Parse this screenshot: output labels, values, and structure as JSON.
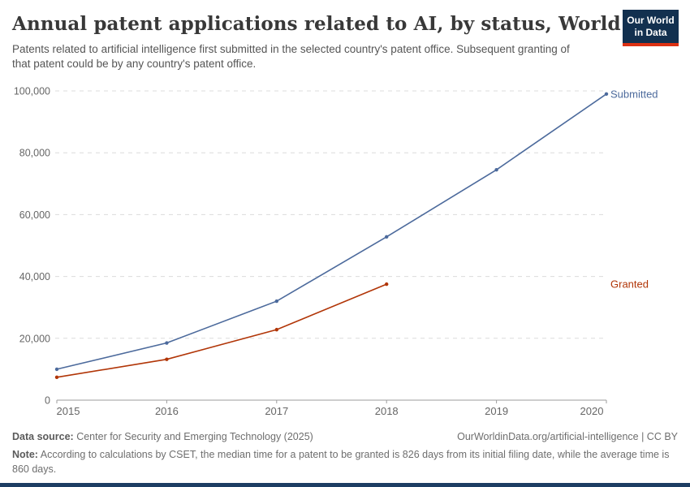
{
  "header": {
    "title": "Annual patent applications related to AI, by status, World",
    "subtitle": "Patents related to artificial intelligence first submitted in the selected country's patent office. Subsequent granting of that patent could be by any country's patent office."
  },
  "logo": {
    "line1": "Our World",
    "line2": "in Data",
    "bg_color": "#12304f",
    "accent_color": "#dc3012"
  },
  "chart_data": {
    "type": "line",
    "title": "Annual patent applications related to AI, by status, World",
    "xlabel": "",
    "ylabel": "",
    "ylim": [
      0,
      100000
    ],
    "yticks": [
      0,
      20000,
      40000,
      60000,
      80000,
      100000
    ],
    "ytick_labels": [
      "0",
      "20,000",
      "40,000",
      "60,000",
      "80,000",
      "100,000"
    ],
    "xticks": [
      2015,
      2016,
      2017,
      2018,
      2019,
      2020
    ],
    "xtick_labels": [
      "2015",
      "2016",
      "2017",
      "2018",
      "2019",
      "2020"
    ],
    "grid": "horizontal-dashed",
    "legend_position": "right-of-line-end",
    "series": [
      {
        "name": "Submitted",
        "color": "#4c6a9c",
        "x": [
          2015,
          2016,
          2017,
          2018,
          2019,
          2020
        ],
        "values": [
          10000,
          18500,
          32000,
          52800,
          74500,
          99000
        ]
      },
      {
        "name": "Granted",
        "color": "#b13507",
        "x": [
          2015,
          2016,
          2017,
          2018
        ],
        "values": [
          7400,
          13200,
          22800,
          37500
        ]
      }
    ],
    "style": {
      "grid_color": "#dcdcdc",
      "axis_color": "#9e9e9e",
      "tick_label_color": "#666666"
    }
  },
  "footer": {
    "data_source_label": "Data source:",
    "data_source": " Center for Security and Emerging Technology (2025)",
    "link": "OurWorldinData.org/artificial-intelligence | CC BY",
    "note_label": "Note:",
    "note": " According to calculations by CSET, the median time for a patent to be granted is 826 days from its initial filing date, while the average time is 860 days.",
    "bottom_bar_color": "#1d3d63"
  }
}
